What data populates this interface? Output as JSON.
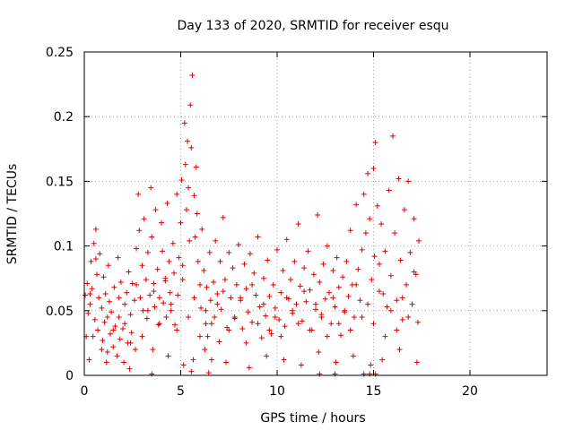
{
  "chart_data": {
    "type": "scatter",
    "title": "Day 133 of 2020, SRMTID for receiver esqu",
    "xlabel": "GPS time / hours",
    "ylabel": "SRMTID / TECUs",
    "xlim": [
      0,
      24
    ],
    "ylim": [
      0,
      0.25
    ],
    "xticks": [
      0,
      5,
      10,
      15,
      20
    ],
    "xtick_labels": [
      "0",
      "5",
      "10",
      "15",
      "20"
    ],
    "yticks": [
      0,
      0.05,
      0.1,
      0.15,
      0.2,
      0.25
    ],
    "ytick_labels": [
      "0",
      "0.05",
      "0.1",
      "0.15",
      "0.2",
      "0.25"
    ],
    "grid": true,
    "marker": "+",
    "marker_color": "#e00000",
    "series": [
      {
        "name": "SRMTID",
        "x": [
          0.05,
          0.1,
          0.15,
          0.2,
          0.25,
          0.3,
          0.35,
          0.4,
          0.5,
          0.55,
          0.6,
          0.65,
          0.7,
          0.75,
          0.8,
          0.9,
          0.95,
          1.0,
          1.05,
          1.1,
          1.2,
          1.25,
          1.3,
          1.35,
          1.4,
          1.5,
          1.55,
          1.6,
          1.7,
          1.75,
          1.8,
          1.85,
          1.9,
          2.0,
          2.05,
          2.1,
          2.2,
          2.25,
          2.3,
          2.4,
          2.45,
          2.5,
          2.6,
          2.65,
          2.7,
          2.8,
          2.85,
          2.9,
          3.0,
          3.05,
          3.1,
          3.2,
          3.25,
          3.3,
          3.4,
          3.45,
          3.5,
          3.6,
          3.65,
          3.7,
          3.8,
          3.85,
          3.9,
          4.0,
          4.05,
          4.1,
          4.2,
          4.25,
          4.3,
          4.4,
          4.45,
          4.5,
          4.6,
          4.65,
          4.7,
          4.8,
          4.85,
          4.9,
          5.0,
          5.05,
          5.1,
          5.2,
          5.25,
          5.3,
          5.35,
          5.4,
          5.45,
          5.5,
          5.55,
          5.6,
          5.7,
          5.75,
          5.8,
          5.85,
          5.9,
          6.0,
          6.05,
          6.1,
          6.2,
          6.3,
          6.35,
          6.4,
          6.5,
          6.55,
          6.6,
          6.7,
          6.75,
          6.8,
          6.9,
          7.0,
          7.05,
          7.1,
          7.2,
          7.3,
          7.4,
          7.5,
          7.6,
          7.7,
          7.8,
          7.9,
          8.0,
          8.1,
          8.2,
          8.3,
          8.4,
          8.5,
          8.6,
          8.7,
          8.8,
          8.9,
          9.0,
          9.1,
          9.2,
          9.3,
          9.4,
          9.5,
          9.6,
          9.7,
          9.8,
          9.9,
          10.0,
          10.1,
          10.2,
          10.3,
          10.4,
          10.5,
          10.6,
          10.7,
          10.8,
          10.9,
          11.0,
          11.1,
          11.2,
          11.3,
          11.4,
          11.5,
          11.6,
          11.7,
          11.8,
          11.9,
          12.0,
          12.1,
          12.2,
          12.3,
          12.4,
          12.5,
          12.6,
          12.7,
          12.8,
          12.9,
          13.0,
          13.1,
          13.2,
          13.3,
          13.4,
          13.5,
          13.6,
          13.7,
          13.8,
          13.9,
          14.0,
          14.1,
          14.2,
          14.3,
          14.4,
          14.5,
          14.6,
          14.7,
          14.8,
          14.9,
          15.0,
          15.05,
          15.1,
          15.2,
          15.3,
          15.4,
          15.5,
          15.6,
          15.7,
          15.8,
          15.9,
          16.0,
          16.1,
          16.2,
          16.3,
          16.4,
          16.5,
          16.6,
          16.7,
          16.8,
          16.9,
          17.0,
          17.1,
          17.2,
          17.3,
          17.35,
          0.3,
          0.6,
          0.9,
          1.2,
          1.5,
          1.8,
          2.1,
          2.4,
          2.7,
          3.0,
          3.3,
          3.6,
          3.9,
          4.2,
          4.5,
          4.8,
          5.1,
          5.4,
          5.7,
          6.0,
          6.3,
          6.6,
          6.9,
          7.2,
          7.5,
          7.8,
          8.1,
          8.4,
          8.7,
          9.0,
          9.3,
          9.6,
          9.9,
          10.2,
          10.5,
          10.8,
          11.1,
          11.4,
          11.7,
          12.0,
          12.3,
          12.6,
          12.9,
          13.2,
          13.5,
          13.8,
          14.1,
          14.4,
          14.7,
          15.0,
          15.3,
          15.6,
          15.9,
          16.2,
          16.5,
          16.8,
          17.1,
          0.45,
          1.15,
          2.35,
          3.55,
          4.35,
          5.15,
          5.65,
          6.25,
          7.35,
          8.55,
          9.45,
          10.35,
          11.25,
          12.15,
          13.05,
          13.95,
          14.85,
          15.45,
          16.35,
          17.25,
          3.5,
          5.55,
          6.45,
          12.2,
          13.0,
          14.5,
          14.8,
          15.1
        ],
        "y": [
          0.062,
          0.03,
          0.071,
          0.048,
          0.012,
          0.055,
          0.088,
          0.067,
          0.102,
          0.043,
          0.113,
          0.078,
          0.035,
          0.06,
          0.094,
          0.052,
          0.027,
          0.076,
          0.041,
          0.063,
          0.018,
          0.085,
          0.057,
          0.032,
          0.049,
          0.022,
          0.068,
          0.038,
          0.015,
          0.091,
          0.045,
          0.028,
          0.072,
          0.036,
          0.01,
          0.055,
          0.064,
          0.025,
          0.08,
          0.047,
          0.033,
          0.071,
          0.058,
          0.02,
          0.098,
          0.14,
          0.112,
          0.06,
          0.085,
          0.05,
          0.121,
          0.074,
          0.044,
          0.095,
          0.062,
          0.145,
          0.107,
          0.071,
          0.053,
          0.128,
          0.082,
          0.039,
          0.06,
          0.118,
          0.096,
          0.056,
          0.073,
          0.045,
          0.133,
          0.088,
          0.064,
          0.05,
          0.102,
          0.079,
          0.039,
          0.14,
          0.062,
          0.091,
          0.118,
          0.151,
          0.074,
          0.195,
          0.163,
          0.128,
          0.181,
          0.145,
          0.104,
          0.209,
          0.176,
          0.232,
          0.139,
          0.107,
          0.161,
          0.125,
          0.088,
          0.07,
          0.052,
          0.113,
          0.081,
          0.04,
          0.068,
          0.03,
          0.095,
          0.058,
          0.012,
          0.072,
          0.045,
          0.104,
          0.063,
          0.026,
          0.088,
          0.051,
          0.122,
          0.074,
          0.037,
          0.095,
          0.06,
          0.083,
          0.044,
          0.07,
          0.101,
          0.058,
          0.036,
          0.086,
          0.067,
          0.049,
          0.094,
          0.041,
          0.079,
          0.062,
          0.107,
          0.053,
          0.029,
          0.075,
          0.046,
          0.089,
          0.061,
          0.032,
          0.07,
          0.052,
          0.097,
          0.043,
          0.064,
          0.081,
          0.038,
          0.105,
          0.059,
          0.074,
          0.048,
          0.088,
          0.055,
          0.117,
          0.069,
          0.042,
          0.083,
          0.057,
          0.096,
          0.066,
          0.035,
          0.078,
          0.051,
          0.124,
          0.072,
          0.047,
          0.086,
          0.059,
          0.1,
          0.064,
          0.04,
          0.081,
          0.053,
          0.091,
          0.068,
          0.031,
          0.076,
          0.049,
          0.088,
          0.061,
          0.112,
          0.07,
          0.045,
          0.132,
          0.082,
          0.058,
          0.097,
          0.14,
          0.11,
          0.156,
          0.121,
          0.074,
          0.16,
          0.092,
          0.18,
          0.131,
          0.086,
          0.117,
          0.063,
          0.096,
          0.053,
          0.143,
          0.077,
          0.185,
          0.11,
          0.058,
          0.152,
          0.089,
          0.043,
          0.128,
          0.07,
          0.15,
          0.095,
          0.055,
          0.121,
          0.078,
          0.041,
          0.104,
          0.063,
          0.09,
          0.02,
          0.045,
          0.035,
          0.06,
          0.04,
          0.025,
          0.07,
          0.03,
          0.05,
          0.065,
          0.04,
          0.075,
          0.055,
          0.035,
          0.085,
          0.045,
          0.06,
          0.03,
          0.05,
          0.04,
          0.055,
          0.065,
          0.035,
          0.045,
          0.06,
          0.025,
          0.07,
          0.04,
          0.055,
          0.035,
          0.045,
          0.03,
          0.06,
          0.05,
          0.04,
          0.065,
          0.035,
          0.055,
          0.045,
          0.03,
          0.06,
          0.04,
          0.05,
          0.035,
          0.07,
          0.045,
          0.055,
          0.04,
          0.065,
          0.03,
          0.05,
          0.035,
          0.06,
          0.045,
          0.08,
          0.03,
          0.01,
          0.005,
          0.02,
          0.015,
          0.008,
          0.012,
          0.02,
          0.01,
          0.006,
          0.015,
          0.012,
          0.008,
          0.018,
          0.01,
          0.015,
          0.008,
          0.012,
          0.02,
          0.01,
          0.001,
          0.003,
          0.002,
          0.001,
          0.001,
          0.001,
          0.001,
          0.001
        ]
      }
    ]
  }
}
